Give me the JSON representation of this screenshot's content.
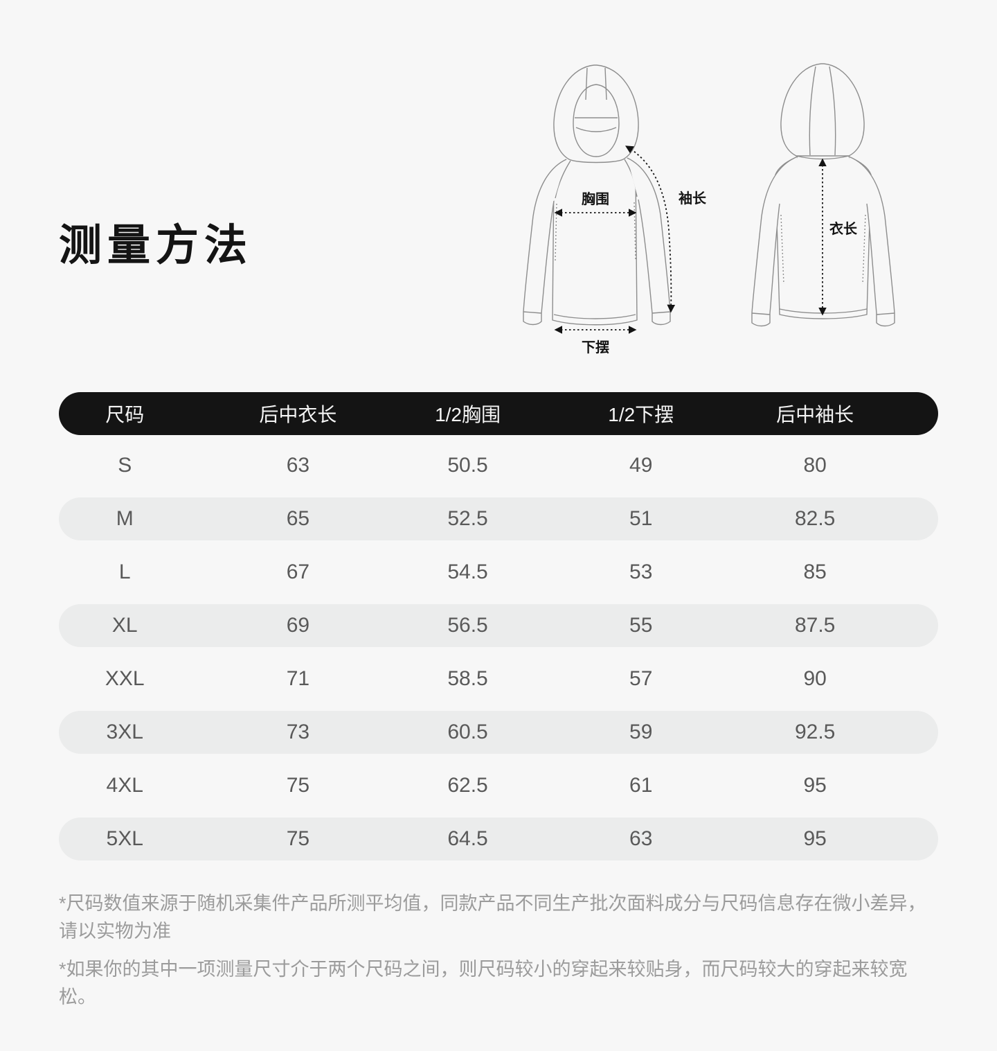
{
  "page": {
    "title": "测量方法"
  },
  "diagram": {
    "front": {
      "chest_label": "胸围",
      "sleeve_label": "袖长",
      "hem_label": "下摆"
    },
    "back": {
      "length_label": "衣长"
    }
  },
  "chart_data": {
    "type": "table",
    "title": "测量方法",
    "columns": [
      "尺码",
      "后中衣长",
      "1/2胸围",
      "1/2下摆",
      "后中袖长"
    ],
    "rows": [
      [
        "S",
        "63",
        "50.5",
        "49",
        "80"
      ],
      [
        "M",
        "65",
        "52.5",
        "51",
        "82.5"
      ],
      [
        "L",
        "67",
        "54.5",
        "53",
        "85"
      ],
      [
        "XL",
        "69",
        "56.5",
        "55",
        "87.5"
      ],
      [
        "XXL",
        "71",
        "58.5",
        "57",
        "90"
      ],
      [
        "3XL",
        "73",
        "60.5",
        "59",
        "92.5"
      ],
      [
        "4XL",
        "75",
        "62.5",
        "61",
        "95"
      ],
      [
        "5XL",
        "75",
        "64.5",
        "63",
        "95"
      ]
    ]
  },
  "notes": [
    "*尺码数值来源于随机采集件产品所测平均值，同款产品不同生产批次面料成分与尺码信息存在微小差异，请以实物为准",
    "*如果你的其中一项测量尺寸介于两个尺码之间，则尺码较小的穿起来较贴身，而尺码较大的穿起来较宽松。"
  ],
  "colors": {
    "page_bg": "#f7f7f7",
    "header_bg": "#141414",
    "header_text": "#f5f5f5",
    "row_alt_bg": "#ebecec",
    "value_text": "#595959",
    "note_text": "#9b9b9b",
    "line_art": "#8d8d8d",
    "arrow": "#141414"
  }
}
